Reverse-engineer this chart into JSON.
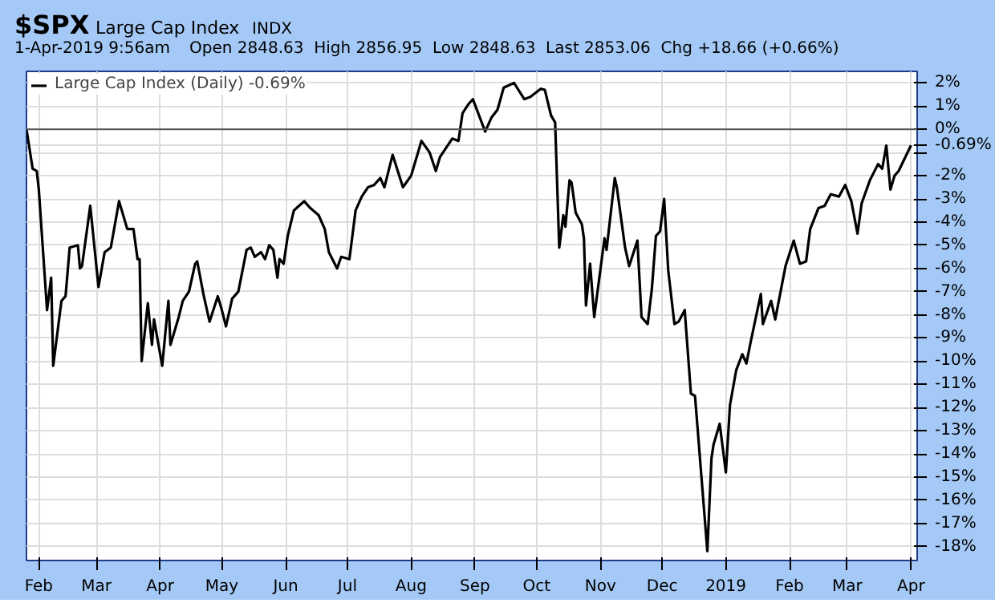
{
  "chart_data": {
    "type": "line",
    "title": "$SPX",
    "subtitle": "Large Cap Index",
    "annotations": [
      "INDX",
      "1-Apr-2019 9:56am",
      "Open 2848.63  High 2856.95  Low 2848.63  Last 2853.06  Chg +18.66 (+0.66%)"
    ],
    "ylim": [
      -18.6,
      2.5
    ],
    "yticks": [
      {
        "value": 2,
        "label": "2%"
      },
      {
        "value": 1,
        "label": "1%"
      },
      {
        "value": 0,
        "label": "0%"
      },
      {
        "value": -0.69,
        "label": "-0.69%"
      },
      {
        "value": -1,
        "label": null
      },
      {
        "value": -2,
        "label": "-2%"
      },
      {
        "value": -3,
        "label": "-3%"
      },
      {
        "value": -4,
        "label": "-4%"
      },
      {
        "value": -5,
        "label": "-5%"
      },
      {
        "value": -6,
        "label": "-6%"
      },
      {
        "value": -7,
        "label": "-7%"
      },
      {
        "value": -8,
        "label": "-8%"
      },
      {
        "value": -9,
        "label": "-9%"
      },
      {
        "value": -10,
        "label": "-10%"
      },
      {
        "value": -11,
        "label": "-11%"
      },
      {
        "value": -12,
        "label": "-12%"
      },
      {
        "value": -13,
        "label": "-13%"
      },
      {
        "value": -14,
        "label": "-14%"
      },
      {
        "value": -15,
        "label": "-15%"
      },
      {
        "value": -16,
        "label": "-16%"
      },
      {
        "value": -17,
        "label": "-17%"
      },
      {
        "value": -18,
        "label": "-18%"
      }
    ],
    "xlim": [
      "2018-01-26",
      "2019-04-04"
    ],
    "xticks": [
      {
        "value": "2018-02-01",
        "label": "Feb"
      },
      {
        "value": "2018-03-01",
        "label": "Mar"
      },
      {
        "value": "2018-04-01",
        "label": "Apr"
      },
      {
        "value": "2018-05-01",
        "label": "May"
      },
      {
        "value": "2018-06-01",
        "label": "Jun"
      },
      {
        "value": "2018-07-01",
        "label": "Jul"
      },
      {
        "value": "2018-08-01",
        "label": "Aug"
      },
      {
        "value": "2018-09-01",
        "label": "Sep"
      },
      {
        "value": "2018-10-01",
        "label": "Oct"
      },
      {
        "value": "2018-11-01",
        "label": "Nov"
      },
      {
        "value": "2018-12-01",
        "label": "Dec"
      },
      {
        "value": "2019-01-01",
        "label": "2019"
      },
      {
        "value": "2019-02-01",
        "label": "Feb"
      },
      {
        "value": "2019-03-01",
        "label": "Mar"
      },
      {
        "value": "2019-04-01",
        "label": "Apr"
      }
    ],
    "grid": true,
    "legend": "top left",
    "ref_lines": [
      {
        "axis": "y",
        "value": 0,
        "color": "#555555"
      }
    ],
    "x": [
      "2018-01-26",
      "2018-01-29",
      "2018-01-31",
      "2018-02-01",
      "2018-02-05",
      "2018-02-07",
      "2018-02-08",
      "2018-02-12",
      "2018-02-14",
      "2018-02-16",
      "2018-02-20",
      "2018-02-21",
      "2018-02-22",
      "2018-02-26",
      "2018-03-02",
      "2018-03-05",
      "2018-03-08",
      "2018-03-12",
      "2018-03-16",
      "2018-03-19",
      "2018-03-21",
      "2018-03-22",
      "2018-03-23",
      "2018-03-26",
      "2018-03-28",
      "2018-03-29",
      "2018-04-02",
      "2018-04-05",
      "2018-04-06",
      "2018-04-10",
      "2018-04-12",
      "2018-04-15",
      "2018-04-18",
      "2018-04-19",
      "2018-04-22",
      "2018-04-25",
      "2018-04-29",
      "2018-05-01",
      "2018-05-03",
      "2018-05-06",
      "2018-05-09",
      "2018-05-13",
      "2018-05-15",
      "2018-05-17",
      "2018-05-20",
      "2018-05-22",
      "2018-05-24",
      "2018-05-26",
      "2018-05-28",
      "2018-05-29",
      "2018-05-31",
      "2018-06-02",
      "2018-06-05",
      "2018-06-10",
      "2018-06-13",
      "2018-06-17",
      "2018-06-20",
      "2018-06-22",
      "2018-06-26",
      "2018-06-28",
      "2018-07-02",
      "2018-07-05",
      "2018-07-08",
      "2018-07-11",
      "2018-07-14",
      "2018-07-17",
      "2018-07-19",
      "2018-07-23",
      "2018-07-28",
      "2018-08-01",
      "2018-08-06",
      "2018-08-10",
      "2018-08-13",
      "2018-08-15",
      "2018-08-21",
      "2018-08-24",
      "2018-08-26",
      "2018-08-29",
      "2018-08-31",
      "2018-09-06",
      "2018-09-09",
      "2018-09-12",
      "2018-09-15",
      "2018-09-20",
      "2018-09-25",
      "2018-09-28",
      "2018-10-03",
      "2018-10-05",
      "2018-10-08",
      "2018-10-10",
      "2018-10-12",
      "2018-10-14",
      "2018-10-15",
      "2018-10-17",
      "2018-10-18",
      "2018-10-20",
      "2018-10-23",
      "2018-10-24",
      "2018-10-25",
      "2018-10-27",
      "2018-10-29",
      "2018-11-03",
      "2018-11-04",
      "2018-11-08",
      "2018-11-09",
      "2018-11-13",
      "2018-11-15",
      "2018-11-19",
      "2018-11-21",
      "2018-11-24",
      "2018-11-26",
      "2018-11-28",
      "2018-11-30",
      "2018-12-02",
      "2018-12-04",
      "2018-12-07",
      "2018-12-09",
      "2018-12-12",
      "2018-12-15",
      "2018-12-17",
      "2018-12-23",
      "2018-12-25",
      "2018-12-26",
      "2018-12-29",
      "2019-01-01",
      "2019-01-03",
      "2019-01-06",
      "2019-01-09",
      "2019-01-11",
      "2019-01-13",
      "2019-01-18",
      "2019-01-19",
      "2019-01-23",
      "2019-01-25",
      "2019-01-30",
      "2019-02-03",
      "2019-02-06",
      "2019-02-09",
      "2019-02-11",
      "2019-02-15",
      "2019-02-18",
      "2019-02-21",
      "2019-02-25",
      "2019-02-28",
      "2019-03-03",
      "2019-03-06",
      "2019-03-08",
      "2019-03-12",
      "2019-03-16",
      "2019-03-18",
      "2019-03-20",
      "2019-03-22",
      "2019-03-24",
      "2019-03-26",
      "2019-04-01"
    ],
    "series": [
      {
        "name": "Large Cap Index (Daily) -0.69%",
        "color": "#000000",
        "values": [
          0,
          -1.7,
          -1.8,
          -2.6,
          -7.8,
          -6.4,
          -10.2,
          -7.4,
          -7.2,
          -5.1,
          -5.0,
          -6.0,
          -5.9,
          -3.3,
          -6.8,
          -5.3,
          -5.1,
          -3.1,
          -4.3,
          -4.3,
          -5.6,
          -5.6,
          -10.0,
          -7.5,
          -9.3,
          -8.2,
          -10.2,
          -7.4,
          -9.3,
          -8.1,
          -7.4,
          -7.0,
          -5.8,
          -5.7,
          -7.1,
          -8.3,
          -7.2,
          -7.8,
          -8.5,
          -7.3,
          -7.0,
          -5.2,
          -5.1,
          -5.5,
          -5.3,
          -5.6,
          -5.0,
          -5.2,
          -6.4,
          -5.6,
          -5.8,
          -4.6,
          -3.5,
          -3.1,
          -3.4,
          -3.7,
          -4.3,
          -5.3,
          -6.0,
          -5.5,
          -5.6,
          -3.5,
          -2.9,
          -2.5,
          -2.4,
          -2.1,
          -2.5,
          -1.1,
          -2.5,
          -2.0,
          -0.5,
          -1.0,
          -1.8,
          -1.2,
          -0.4,
          -0.5,
          0.7,
          1.1,
          1.3,
          -0.1,
          0.5,
          0.85,
          1.8,
          2.0,
          1.3,
          1.4,
          1.75,
          1.7,
          0.6,
          0.3,
          -5.1,
          -3.7,
          -4.2,
          -2.2,
          -2.3,
          -3.6,
          -4.1,
          -4.7,
          -7.6,
          -5.8,
          -8.1,
          -4.7,
          -5.2,
          -2.1,
          -2.5,
          -5.1,
          -5.9,
          -4.8,
          -8.1,
          -8.4,
          -6.9,
          -4.6,
          -4.4,
          -3.0,
          -6.1,
          -8.4,
          -8.3,
          -7.8,
          -11.4,
          -11.5,
          -18.2,
          -14.2,
          -13.6,
          -12.7,
          -14.8,
          -11.9,
          -10.4,
          -9.7,
          -10.1,
          -9.2,
          -7.1,
          -8.4,
          -7.4,
          -8.2,
          -5.9,
          -4.8,
          -5.8,
          -5.7,
          -4.3,
          -3.4,
          -3.3,
          -2.8,
          -2.9,
          -2.4,
          -3.1,
          -4.5,
          -3.2,
          -2.2,
          -1.5,
          -1.7,
          -0.7,
          -2.6,
          -2.0,
          -1.8,
          -0.69
        ]
      }
    ]
  }
}
